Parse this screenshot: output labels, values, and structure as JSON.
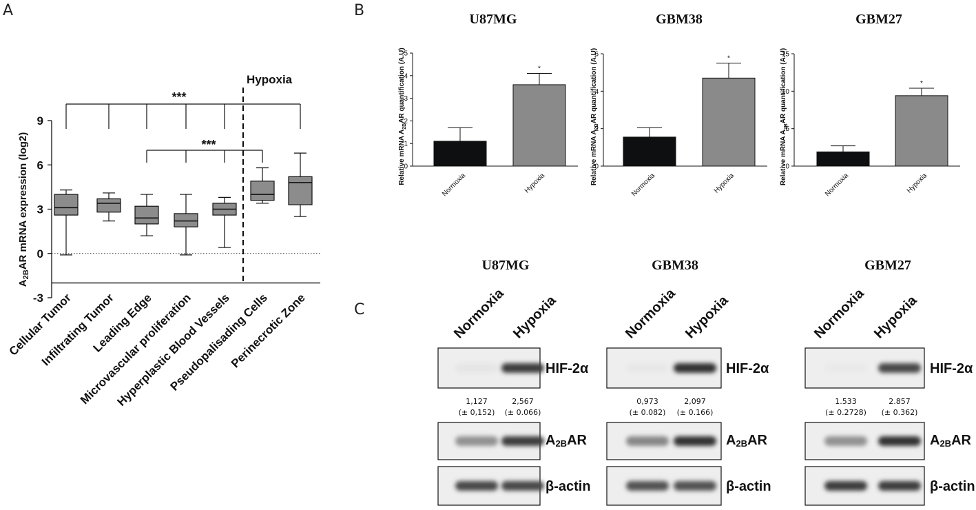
{
  "panels": {
    "a": "A",
    "b": "B",
    "c": "C"
  },
  "chart_data": [
    {
      "id": "A",
      "type": "box",
      "ylabel_main": "A",
      "ylabel_sub": "2B",
      "ylabel_rest": "AR mRNA expression (log2)",
      "ylim": [
        -3,
        9
      ],
      "yticks": [
        "9",
        "6",
        "3",
        "0",
        "-3"
      ],
      "region_label": "Hypoxia",
      "significance": [
        "***",
        "***"
      ],
      "categories": [
        "Cellular Tumor",
        "Infiltrating Tumor",
        "Leading Edge",
        "Microvascular proliferation",
        "Hyperplastic Blood Vessels",
        "Pseudopalisading Cells",
        "Perinecrotic Zone"
      ],
      "boxes": [
        {
          "min": -0.1,
          "q1": 2.6,
          "median": 3.1,
          "q3": 4.0,
          "max": 4.3
        },
        {
          "min": 2.2,
          "q1": 2.8,
          "median": 3.4,
          "q3": 3.7,
          "max": 4.1
        },
        {
          "min": 1.2,
          "q1": 2.0,
          "median": 2.4,
          "q3": 3.2,
          "max": 4.0
        },
        {
          "min": -0.1,
          "q1": 1.8,
          "median": 2.2,
          "q3": 2.7,
          "max": 4.0
        },
        {
          "min": 0.4,
          "q1": 2.6,
          "median": 3.0,
          "q3": 3.4,
          "max": 3.8
        },
        {
          "min": 3.4,
          "q1": 3.6,
          "median": 4.0,
          "q3": 4.9,
          "max": 5.8
        },
        {
          "min": 2.5,
          "q1": 3.3,
          "median": 4.8,
          "q3": 5.2,
          "max": 6.8
        }
      ]
    },
    {
      "id": "B1",
      "type": "bar",
      "title": "U87MG",
      "ylabel_main": "Relative mRNA A",
      "ylabel_sub": "2B",
      "ylabel_rest": "AR quantification (A.U)",
      "categories": [
        "Normoxia",
        "Hypoxia"
      ],
      "values": [
        1.1,
        3.6
      ],
      "errors": [
        0.6,
        0.5
      ],
      "yticks": [
        "0",
        "1",
        "2",
        "3",
        "4",
        "5"
      ],
      "ylim": [
        0,
        5
      ],
      "colors": [
        "#0d0f10",
        "#8a8a8a"
      ],
      "sig": "*"
    },
    {
      "id": "B2",
      "type": "bar",
      "title": "GBM38",
      "ylabel_main": "Relative mRNA A",
      "ylabel_sub": "2B",
      "ylabel_rest": "AR quantification (A.U)",
      "categories": [
        "Normoxia",
        "Hypoxia"
      ],
      "values": [
        1.55,
        4.7
      ],
      "errors": [
        0.5,
        0.8
      ],
      "yticks": [
        "0",
        "2",
        "4",
        "6"
      ],
      "ylim": [
        0,
        6
      ],
      "colors": [
        "#0d0f10",
        "#8a8a8a"
      ],
      "sig": "*"
    },
    {
      "id": "B3",
      "type": "bar",
      "title": "GBM27",
      "ylabel_main": "Relative mRNA A",
      "ylabel_sub": "2B",
      "ylabel_rest": "AR quantification (A.U)",
      "categories": [
        "Normoxia",
        "Hypoxia"
      ],
      "values": [
        1.9,
        9.4
      ],
      "errors": [
        0.8,
        1.0
      ],
      "yticks": [
        "0",
        "5",
        "10",
        "15"
      ],
      "ylim": [
        0,
        15
      ],
      "colors": [
        "#0d0f10",
        "#8a8a8a"
      ],
      "sig": "*"
    }
  ],
  "western": [
    {
      "title": "U87MG",
      "conditions": [
        "Normoxia",
        "Hypoxia"
      ],
      "hif_label": "HIF-2α",
      "a2b_main": "A",
      "a2b_sub": "2B",
      "a2b_rest": "AR",
      "actin_label": "β-actin",
      "quant": [
        [
          "1,127",
          "(± 0,152)"
        ],
        [
          "2,567",
          "(± 0.066)"
        ]
      ],
      "band_intensity": {
        "hif": [
          0.05,
          0.85
        ],
        "a2b": [
          0.45,
          0.85
        ],
        "actin": [
          0.8,
          0.8
        ]
      }
    },
    {
      "title": "GBM38",
      "conditions": [
        "Normoxia",
        "Hypoxia"
      ],
      "hif_label": "HIF-2α",
      "a2b_main": "A",
      "a2b_sub": "2B",
      "a2b_rest": "AR",
      "actin_label": "β-actin",
      "quant": [
        [
          "0,973",
          "(± 0.082)"
        ],
        [
          "2,097",
          "(± 0.166)"
        ]
      ],
      "band_intensity": {
        "hif": [
          0.04,
          0.9
        ],
        "a2b": [
          0.5,
          0.9
        ],
        "actin": [
          0.75,
          0.75
        ]
      }
    },
    {
      "title": "GBM27",
      "conditions": [
        "Normoxia",
        "Hypoxia"
      ],
      "hif_label": "HIF-2α",
      "a2b_main": "A",
      "a2b_sub": "2B",
      "a2b_rest": "AR",
      "actin_label": "β-actin",
      "quant": [
        [
          "1.533",
          "(± 0.2728)"
        ],
        [
          "2.857",
          "(± 0.362)"
        ]
      ],
      "band_intensity": {
        "hif": [
          0.03,
          0.8
        ],
        "a2b": [
          0.45,
          0.9
        ],
        "actin": [
          0.85,
          0.85
        ]
      }
    }
  ]
}
